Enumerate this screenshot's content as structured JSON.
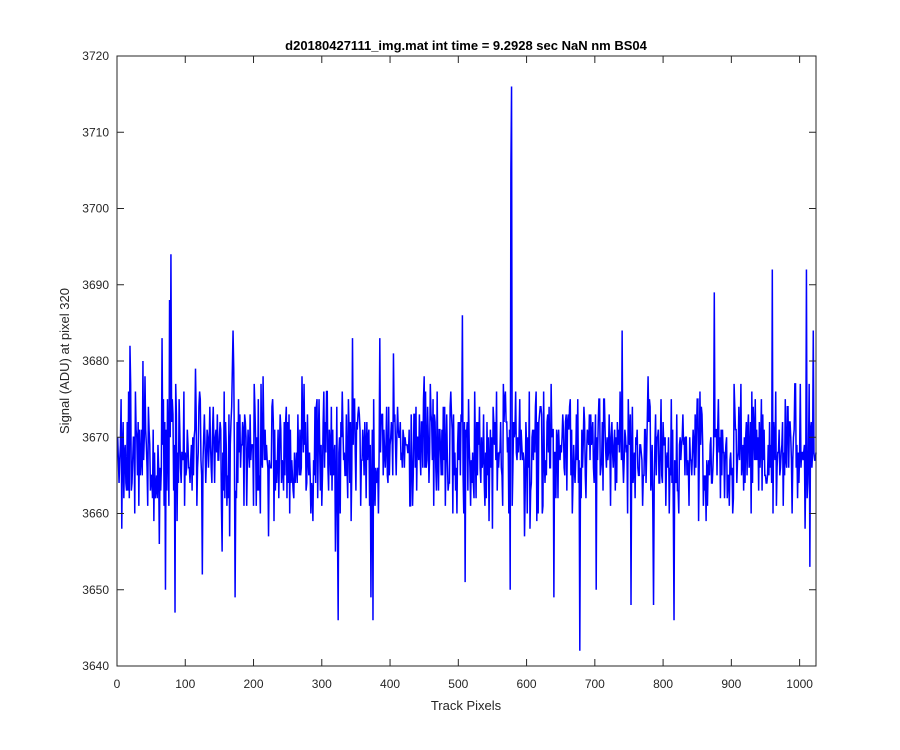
{
  "chart_data": {
    "type": "line",
    "title": "d20180427111_img.mat int time = 9.2928 sec  NaN nm BS04",
    "xlabel": "Track Pixels",
    "ylabel": "Signal (ADU) at pixel 320",
    "xlim": [
      0,
      1024
    ],
    "ylim": [
      3640,
      3720
    ],
    "xticks": [
      0,
      100,
      200,
      300,
      400,
      500,
      600,
      700,
      800,
      900,
      1000
    ],
    "xtick_labels": [
      "0",
      "100",
      "200",
      "300",
      "400",
      "500",
      "600",
      "700",
      "800",
      "900",
      "1000"
    ],
    "yticks": [
      3640,
      3650,
      3660,
      3670,
      3680,
      3690,
      3700,
      3710,
      3720
    ],
    "ytick_labels": [
      "3640",
      "3650",
      "3660",
      "3670",
      "3680",
      "3690",
      "3700",
      "3710",
      "3720"
    ],
    "grid": false,
    "box": true,
    "series": [
      {
        "color": "#0000ff",
        "x_start": 1,
        "x_step": 1,
        "count": 1024,
        "mean": 3668,
        "noise_amplitude": 8,
        "points": [
          [
            1,
            3670
          ],
          [
            10,
            3662
          ],
          [
            19,
            3682
          ],
          [
            26,
            3660
          ],
          [
            41,
            3678
          ],
          [
            62,
            3656
          ],
          [
            66,
            3683
          ],
          [
            71,
            3650
          ],
          [
            77,
            3688
          ],
          [
            79,
            3694
          ],
          [
            85,
            3647
          ],
          [
            91,
            3675
          ],
          [
            125,
            3652
          ],
          [
            170,
            3684
          ],
          [
            173,
            3649
          ],
          [
            230,
            3659
          ],
          [
            320,
            3655
          ],
          [
            324,
            3646
          ],
          [
            345,
            3683
          ],
          [
            372,
            3649
          ],
          [
            375,
            3646
          ],
          [
            385,
            3683
          ],
          [
            405,
            3681
          ],
          [
            500,
            3672
          ],
          [
            506,
            3686
          ],
          [
            510,
            3651
          ],
          [
            576,
            3650
          ],
          [
            577,
            3705
          ],
          [
            578,
            3716
          ],
          [
            579,
            3661
          ],
          [
            640,
            3649
          ],
          [
            678,
            3642
          ],
          [
            702,
            3650
          ],
          [
            740,
            3684
          ],
          [
            753,
            3648
          ],
          [
            786,
            3648
          ],
          [
            816,
            3646
          ],
          [
            875,
            3689
          ],
          [
            960,
            3692
          ],
          [
            1010,
            3692
          ],
          [
            1015,
            3653
          ],
          [
            1020,
            3684
          ],
          [
            1024,
            3668
          ]
        ]
      }
    ]
  }
}
